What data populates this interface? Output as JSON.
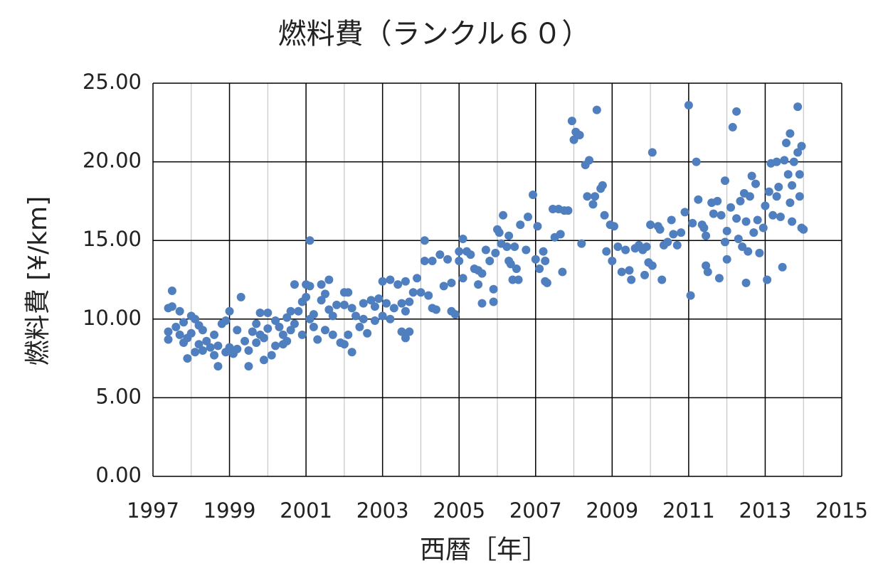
{
  "chart_data": {
    "type": "scatter",
    "title": "燃料費（ランクル６０）",
    "x_label": "西暦［年］",
    "y_label": "燃料費 [¥/km]",
    "color": "#4f7fbf",
    "xlim": [
      1997,
      2015
    ],
    "xticks": [
      1997,
      1999,
      2001,
      2003,
      2005,
      2007,
      2009,
      2011,
      2013,
      2015
    ],
    "xminor_ticks": [
      1998,
      2000,
      2002,
      2004,
      2006,
      2008,
      2010,
      2012,
      2014
    ],
    "ylim": [
      0,
      25
    ],
    "yticks": [
      {
        "value": 0,
        "label": "0.00"
      },
      {
        "value": 5,
        "label": "5.00"
      },
      {
        "value": 10,
        "label": "10.00"
      },
      {
        "value": 15,
        "label": "15.00"
      },
      {
        "value": 20,
        "label": "20.00"
      },
      {
        "value": 25,
        "label": "25.00"
      }
    ],
    "grid": true,
    "x": [
      1997.4,
      1997.4,
      1997.4,
      1997.5,
      1997.5,
      1997.6,
      1997.7,
      1997.7,
      1997.8,
      1997.8,
      1997.9,
      1997.9,
      1998.0,
      1998.0,
      1998.1,
      1998.1,
      1998.2,
      1998.2,
      1998.3,
      1998.3,
      1998.4,
      1998.5,
      1998.6,
      1998.6,
      1998.7,
      1998.7,
      1998.8,
      1998.9,
      1998.9,
      1999.0,
      1999.0,
      1999.1,
      1999.2,
      1999.2,
      1999.3,
      1999.4,
      1999.5,
      1999.5,
      1999.6,
      1999.7,
      1999.7,
      1999.8,
      1999.8,
      1999.9,
      1999.9,
      2000.0,
      2000.0,
      2000.1,
      2000.2,
      2000.2,
      2000.3,
      2000.4,
      2000.4,
      2000.5,
      2000.5,
      2000.6,
      2000.6,
      2000.7,
      2000.7,
      2000.8,
      2000.9,
      2000.9,
      2001.0,
      2001.0,
      2001.1,
      2001.1,
      2001.1,
      2001.2,
      2001.2,
      2001.3,
      2001.4,
      2001.4,
      2001.5,
      2001.5,
      2001.6,
      2001.6,
      2001.7,
      2001.7,
      2001.8,
      2001.9,
      2002.0,
      2002.0,
      2002.0,
      2002.1,
      2002.1,
      2002.2,
      2002.2,
      2002.3,
      2002.4,
      2002.5,
      2002.5,
      2002.6,
      2002.7,
      2002.8,
      2002.8,
      2002.9,
      2003.0,
      2003.0,
      2003.1,
      2003.2,
      2003.2,
      2003.3,
      2003.4,
      2003.5,
      2003.5,
      2003.6,
      2003.6,
      2003.6,
      2003.7,
      2003.7,
      2003.8,
      2003.9,
      2004.0,
      2004.1,
      2004.1,
      2004.2,
      2004.3,
      2004.3,
      2004.4,
      2004.5,
      2004.6,
      2004.7,
      2004.8,
      2004.8,
      2004.9,
      2005.0,
      2005.0,
      2005.1,
      2005.1,
      2005.2,
      2005.3,
      2005.4,
      2005.5,
      2005.5,
      2005.6,
      2005.6,
      2005.7,
      2005.8,
      2005.9,
      2005.9,
      2005.95,
      2006.0,
      2006.05,
      2006.1,
      2006.15,
      2006.25,
      2006.3,
      2006.3,
      2006.4,
      2006.35,
      2006.45,
      2006.55,
      2006.5,
      2006.6,
      2006.75,
      2006.8,
      2006.93,
      2007.0,
      2007.05,
      2007.1,
      2007.2,
      2007.25,
      2007.25,
      2007.3,
      2007.45,
      2007.5,
      2007.6,
      2007.65,
      2007.7,
      2007.75,
      2007.85,
      2007.95,
      2008.0,
      2008.05,
      2008.15,
      2008.2,
      2008.3,
      2008.35,
      2008.4,
      2008.5,
      2008.6,
      2008.55,
      2008.7,
      2008.75,
      2008.8,
      2008.85,
      2008.95,
      2009.0,
      2009.05,
      2009.15,
      2009.25,
      2009.35,
      2009.45,
      2009.5,
      2009.6,
      2009.7,
      2009.8,
      2009.85,
      2009.9,
      2009.95,
      2010.0,
      2010.05,
      2010.05,
      2010.2,
      2010.25,
      2010.3,
      2010.35,
      2010.45,
      2010.55,
      2010.6,
      2010.7,
      2010.8,
      2010.9,
      2011.0,
      2011.05,
      2011.1,
      2011.2,
      2011.25,
      2011.35,
      2011.4,
      2011.45,
      2011.45,
      2011.5,
      2011.6,
      2011.65,
      2011.75,
      2011.8,
      2011.85,
      2011.95,
      2011.95,
      2012.0,
      2012.0,
      2012.1,
      2012.15,
      2012.25,
      2012.25,
      2012.3,
      2012.35,
      2012.4,
      2012.45,
      2012.5,
      2012.5,
      2012.55,
      2012.6,
      2012.65,
      2012.7,
      2012.75,
      2012.8,
      2012.85,
      2012.95,
      2013.0,
      2013.05,
      2013.1,
      2013.15,
      2013.2,
      2013.3,
      2013.3,
      2013.35,
      2013.4,
      2013.45,
      2013.5,
      2013.55,
      2013.6,
      2013.65,
      2013.65,
      2013.7,
      2013.7,
      2013.75,
      2013.85,
      2013.85,
      2013.9,
      2013.9,
      2013.95,
      2013.95,
      2014.0
    ],
    "values": [
      10.7,
      9.2,
      8.7,
      11.8,
      10.8,
      9.5,
      10.5,
      9.0,
      8.5,
      9.8,
      7.5,
      8.8,
      10.2,
      9.1,
      7.9,
      10.0,
      8.4,
      9.6,
      8.0,
      9.3,
      8.6,
      8.2,
      9.0,
      7.7,
      7.0,
      8.3,
      9.7,
      7.9,
      9.9,
      8.2,
      10.5,
      7.8,
      9.3,
      8.1,
      11.4,
      8.6,
      7.0,
      8.0,
      9.2,
      9.7,
      8.5,
      10.4,
      9.0,
      7.4,
      8.8,
      10.4,
      9.4,
      7.7,
      9.9,
      8.3,
      9.5,
      8.4,
      9.0,
      10.1,
      8.6,
      9.3,
      10.5,
      12.2,
      9.7,
      10.5,
      11.1,
      9.0,
      12.2,
      11.4,
      10.0,
      12.1,
      15.0,
      9.5,
      10.3,
      8.7,
      11.2,
      12.2,
      9.3,
      11.6,
      12.5,
      10.6,
      9.0,
      10.2,
      10.9,
      8.5,
      11.7,
      10.9,
      8.4,
      9.0,
      11.7,
      7.9,
      10.7,
      10.2,
      9.5,
      11.0,
      10.0,
      9.1,
      11.2,
      10.8,
      9.9,
      11.3,
      10.2,
      12.4,
      11.0,
      10.0,
      12.5,
      10.7,
      12.2,
      11.0,
      9.2,
      10.5,
      8.8,
      12.4,
      11.1,
      9.2,
      11.7,
      12.6,
      11.7,
      13.7,
      15.0,
      11.5,
      13.7,
      10.7,
      10.6,
      14.1,
      12.1,
      13.8,
      12.3,
      10.5,
      10.3,
      13.7,
      14.3,
      15.1,
      12.6,
      14.3,
      14.1,
      13.2,
      12.2,
      13.1,
      11.0,
      12.9,
      14.4,
      13.7,
      11.9,
      11.1,
      14.2,
      15.7,
      15.5,
      14.8,
      16.6,
      14.6,
      15.3,
      13.7,
      12.5,
      13.5,
      14.6,
      12.5,
      13.2,
      16.0,
      14.4,
      16.5,
      17.9,
      13.8,
      15.9,
      13.2,
      14.3,
      12.4,
      13.7,
      12.3,
      17.0,
      15.2,
      17.0,
      15.4,
      13.0,
      16.9,
      16.9,
      22.6,
      21.4,
      21.9,
      21.7,
      14.8,
      19.8,
      17.8,
      20.1,
      17.3,
      23.3,
      17.8,
      18.3,
      18.5,
      16.6,
      14.3,
      16.0,
      13.7,
      15.9,
      14.6,
      13.0,
      14.4,
      13.1,
      12.5,
      14.5,
      14.7,
      14.4,
      12.8,
      14.6,
      13.6,
      16.0,
      20.6,
      13.4,
      15.9,
      15.7,
      12.5,
      14.7,
      14.9,
      16.3,
      15.4,
      14.7,
      15.5,
      16.8,
      23.6,
      11.5,
      16.1,
      20.0,
      17.6,
      16.0,
      15.8,
      13.4,
      15.3,
      13.0,
      17.4,
      16.7,
      17.5,
      12.6,
      16.6,
      14.9,
      18.8,
      15.6,
      13.8,
      17.1,
      22.2,
      23.2,
      16.4,
      15.1,
      17.5,
      14.6,
      18.0,
      16.2,
      12.3,
      14.3,
      17.8,
      19.1,
      15.5,
      18.6,
      16.3,
      14.2,
      15.8,
      17.2,
      12.5,
      18.1,
      19.9,
      16.6,
      20.0,
      17.8,
      18.4,
      16.5,
      13.3,
      20.1,
      21.2,
      19.2,
      21.8,
      17.4,
      18.5,
      16.2,
      20.0,
      23.5,
      20.6,
      17.8,
      19.2,
      15.8,
      21.0,
      15.7
    ]
  }
}
